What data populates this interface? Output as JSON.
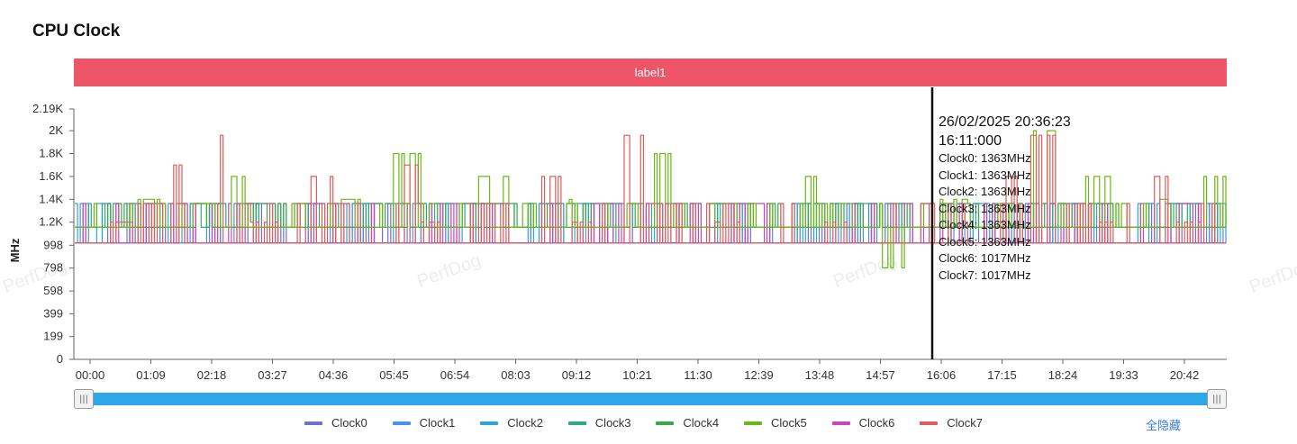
{
  "title": "CPU Clock",
  "label_band": "label1",
  "watermark": "PerfDog",
  "tooltip": {
    "date": "26/02/2025 20:36:23",
    "time": "16:11:000",
    "lines": [
      "Clock0: 1363MHz",
      "Clock1: 1363MHz",
      "Clock2: 1363MHz",
      "Clock3: 1363MHz",
      "Clock4: 1363MHz",
      "Clock5: 1363MHz",
      "Clock6: 1017MHz",
      "Clock7: 1017MHz"
    ]
  },
  "hide_all_label": "全隐藏",
  "slider": {
    "start_icon": "slider-handle-icon",
    "end_icon": "slider-handle-icon",
    "range": [
      0,
      1
    ]
  },
  "chart_data": {
    "type": "line",
    "title": "CPU Clock",
    "ylabel": "MHz",
    "xlabel": "",
    "ylim": [
      0,
      2190
    ],
    "yticks": [
      0,
      199,
      399,
      598,
      798,
      998,
      1200,
      1400,
      1600,
      1800,
      2000,
      2190
    ],
    "ytick_labels": [
      "0",
      "199",
      "399",
      "598",
      "798",
      "998",
      "1.2K",
      "1.4K",
      "1.6K",
      "1.8K",
      "2K",
      "2.19K"
    ],
    "xticks": [
      "00:00",
      "01:09",
      "02:18",
      "03:27",
      "04:36",
      "05:45",
      "06:54",
      "08:03",
      "09:12",
      "10:21",
      "11:30",
      "12:39",
      "13:48",
      "14:57",
      "16:06",
      "17:15",
      "18:24",
      "19:33",
      "20:42"
    ],
    "cursor_time": "16:11",
    "series": [
      {
        "name": "Clock0",
        "color": "#6c6fd4",
        "base": 1017,
        "alt": 1363,
        "values": [
          1017,
          1017,
          1363,
          1017,
          1017,
          1017,
          1363,
          1017,
          1017,
          1363,
          1363,
          1017,
          1017,
          1017,
          1363,
          1017,
          1363,
          1017,
          1017,
          1363,
          1017,
          1017,
          1017,
          1017,
          1017,
          1363,
          1017,
          1017,
          1363,
          1017,
          1017,
          1363,
          1017,
          1363,
          1017,
          1017,
          1017,
          1017,
          1363,
          1017
        ]
      },
      {
        "name": "Clock1",
        "color": "#4a90f0",
        "base": 1017,
        "alt": 1363,
        "values": [
          1017,
          1363,
          1017,
          1017,
          1363,
          1017,
          1017,
          1017,
          1363,
          1017,
          1017,
          1363,
          1017,
          1017,
          1017,
          1017,
          1363,
          1017,
          1363,
          1017,
          1017,
          1017,
          1363,
          1017,
          1017,
          1017,
          1363,
          1017,
          1017,
          1017,
          1363,
          1017,
          1363,
          1017,
          1017,
          1363,
          1017,
          1017,
          1017,
          1363
        ]
      },
      {
        "name": "Clock2",
        "color": "#28a8d8",
        "base": 1017,
        "alt": 1363,
        "values": [
          1363,
          1017,
          1017,
          1363,
          1017,
          1017,
          1363,
          1017,
          1017,
          1017,
          1363,
          1017,
          1017,
          1363,
          1017,
          1017,
          1017,
          1363,
          1017,
          1017,
          1363,
          1017,
          1017,
          1017,
          1363,
          1017,
          1017,
          1363,
          1017,
          1017,
          1017,
          1363,
          1017,
          1017,
          1363,
          1017,
          1017,
          1363,
          1017,
          1017
        ]
      },
      {
        "name": "Clock3",
        "color": "#2bab7f",
        "base": 1155,
        "alt": 1363,
        "values": [
          1155,
          1155,
          1363,
          1155,
          1363,
          1363,
          1155,
          1155,
          1363,
          1155,
          1155,
          1363,
          1363,
          1155,
          1155,
          1363,
          1155,
          1155,
          1363,
          1155,
          1155,
          1363,
          1155,
          1155,
          1155,
          1363,
          1155,
          1363,
          1155,
          1155,
          1363,
          1155,
          1155,
          1363,
          1155,
          1363,
          1155,
          1155,
          1363,
          1155
        ]
      },
      {
        "name": "Clock4",
        "color": "#3aa84a",
        "base": 1155,
        "alt": 1363,
        "values": [
          1155,
          1363,
          1155,
          1155,
          1363,
          1155,
          1363,
          1363,
          1155,
          1155,
          1363,
          1155,
          1155,
          1363,
          1363,
          1155,
          1155,
          1363,
          1155,
          1363,
          1155,
          1155,
          1363,
          1155,
          1363,
          1155,
          1155,
          1363,
          1363,
          1155,
          1155,
          1363,
          1155,
          1155,
          1363,
          1363,
          1155,
          1155,
          1363,
          1155
        ]
      },
      {
        "name": "Clock5",
        "color": "#6ab814",
        "base": 1155,
        "alt": 1363,
        "values": [
          1155,
          1363,
          1400,
          1155,
          1363,
          1600,
          1155,
          1363,
          1155,
          1400,
          1155,
          1800,
          1363,
          1155,
          1600,
          1363,
          1155,
          1400,
          1155,
          1363,
          1800,
          1155,
          1363,
          1155,
          1155,
          1600,
          1363,
          1155,
          800,
          1155,
          1400,
          1155,
          1363,
          2000,
          1363,
          1600,
          1155,
          1400,
          1155,
          1600
        ]
      },
      {
        "name": "Clock6",
        "color": "#cc44bb",
        "base": 1017,
        "alt": 1363,
        "values": [
          1017,
          1017,
          1017,
          1363,
          1017,
          1017,
          1017,
          1017,
          1363,
          1017,
          1017,
          1017,
          1017,
          1363,
          1017,
          1017,
          1017,
          1017,
          1363,
          1017,
          1017,
          1017,
          1017,
          1363,
          1017,
          1017,
          1017,
          1017,
          1363,
          1017,
          1017,
          1017,
          1017,
          1363,
          1017,
          1017,
          1017,
          1017,
          1363,
          1017
        ]
      },
      {
        "name": "Clock7",
        "color": "#dd5c5c",
        "base": 1017,
        "alt": 1363,
        "values": [
          1017,
          1200,
          1363,
          1700,
          1017,
          1960,
          1200,
          1017,
          1600,
          1363,
          1017,
          1700,
          1200,
          1017,
          1363,
          1017,
          1600,
          1200,
          1017,
          1960,
          1363,
          1017,
          1200,
          1017,
          1363,
          1017,
          1200,
          1017,
          1017,
          1363,
          1200,
          1017,
          1600,
          1960,
          1363,
          1200,
          1017,
          1600,
          1200,
          1017
        ]
      }
    ],
    "legend_position": "bottom"
  }
}
